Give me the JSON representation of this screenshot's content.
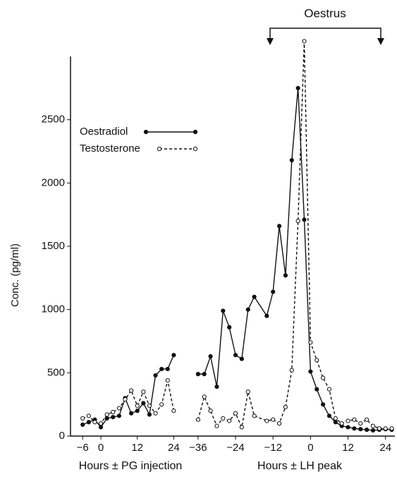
{
  "chart_data": [
    {
      "type": "line",
      "ylabel": "Conc. (pg/ml)",
      "xlabel": "Hours ± PG injection",
      "x": [
        -6,
        -4,
        -2,
        0,
        2,
        4,
        6,
        8,
        10,
        12,
        14,
        16,
        18,
        20,
        22,
        24
      ],
      "xlim": [
        -10,
        26
      ],
      "xticks": [
        {
          "value": -6,
          "label": "−6"
        },
        0,
        12,
        24
      ],
      "ylim": [
        0,
        3000
      ],
      "yticks": [
        0,
        500,
        1000,
        1500,
        2000,
        2500
      ],
      "series": [
        {
          "name": "Oestradiol",
          "color": "#111111",
          "line_style": "solid",
          "marker": "filled",
          "values": [
            90,
            110,
            130,
            70,
            140,
            150,
            160,
            300,
            180,
            200,
            260,
            170,
            480,
            530,
            530,
            640
          ]
        },
        {
          "name": "Testosterone",
          "color": "#111111",
          "line_style": "dashed",
          "marker": "open",
          "values": [
            140,
            160,
            110,
            100,
            170,
            190,
            220,
            290,
            360,
            240,
            350,
            240,
            180,
            250,
            440,
            200
          ]
        }
      ]
    },
    {
      "type": "line",
      "xlabel": "Hours ± LH peak",
      "annotation": "Oestrus",
      "x": [
        -36,
        -34,
        -32,
        -30,
        -28,
        -26,
        -24,
        -22,
        -20,
        -18,
        -14,
        -12,
        -10,
        -8,
        -6,
        -4,
        -2,
        0,
        2,
        4,
        6,
        8,
        10,
        12,
        14,
        16,
        18,
        20,
        22,
        24,
        26
      ],
      "xlim": [
        -38,
        27
      ],
      "xticks": [
        {
          "value": -36,
          "label": "−36"
        },
        {
          "value": -24,
          "label": "−24"
        },
        {
          "value": -12,
          "label": "−12"
        },
        0,
        12,
        24
      ],
      "ylim": [
        0,
        3000
      ],
      "series": [
        {
          "name": "Oestradiol",
          "color": "#111111",
          "line_style": "solid",
          "marker": "filled",
          "values": [
            490,
            490,
            630,
            390,
            990,
            860,
            640,
            610,
            1000,
            1100,
            950,
            1140,
            1660,
            1270,
            2180,
            2750,
            1710,
            510,
            370,
            250,
            160,
            110,
            80,
            70,
            60,
            55,
            50,
            45,
            50,
            55,
            50
          ]
        },
        {
          "name": "Testosterone",
          "color": "#111111",
          "line_style": "dashed",
          "marker": "open",
          "values": [
            130,
            310,
            200,
            80,
            140,
            120,
            180,
            70,
            350,
            160,
            120,
            130,
            100,
            230,
            520,
            1700,
            3120,
            740,
            600,
            460,
            370,
            140,
            100,
            120,
            130,
            100,
            130,
            80,
            60,
            60,
            60
          ]
        }
      ]
    }
  ]
}
